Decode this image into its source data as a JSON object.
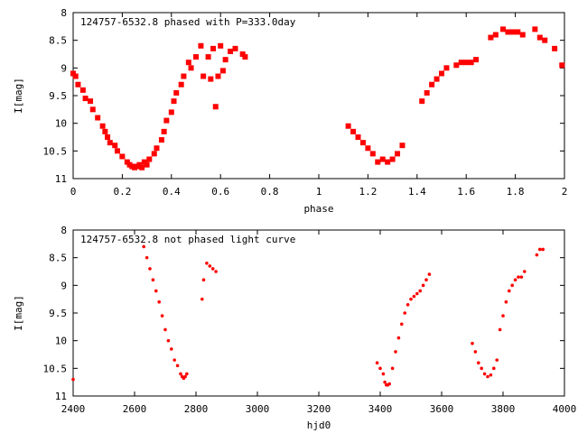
{
  "chart_data": [
    {
      "type": "scatter",
      "title": "124757-6532.8 phased with P=333.0day",
      "xlabel": "phase",
      "ylabel": "I[mag]",
      "xlim": [
        0,
        2
      ],
      "ylim": [
        11,
        8
      ],
      "y_reversed": true,
      "grid": false,
      "marker": "square",
      "color": "#ff0000",
      "xticks": [
        "0",
        "0.2",
        "0.4",
        "0.6",
        "0.8",
        "1",
        "1.2",
        "1.4",
        "1.6",
        "1.8",
        "2"
      ],
      "yticks": [
        "8",
        "8.5",
        "9",
        "9.5",
        "10",
        "10.5",
        "11"
      ],
      "series": [
        {
          "x": [
            0.0,
            0.01,
            0.02,
            0.04,
            0.05,
            0.07,
            0.08,
            0.1,
            0.12,
            0.13,
            0.14,
            0.15,
            0.17,
            0.18,
            0.2,
            0.22,
            0.23,
            0.24,
            0.25,
            0.26,
            0.27,
            0.28,
            0.29,
            0.3,
            0.31,
            0.33,
            0.34,
            0.36,
            0.37,
            0.38,
            0.4,
            0.41,
            0.42,
            0.44,
            0.45,
            0.47,
            0.48,
            0.5,
            0.52,
            0.53,
            0.55,
            0.56,
            0.57,
            0.58,
            0.59,
            0.6,
            0.61,
            0.62,
            0.64,
            0.66,
            0.69,
            0.7,
            1.12,
            1.14,
            1.16,
            1.18,
            1.2,
            1.22,
            1.24,
            1.26,
            1.28,
            1.3,
            1.32,
            1.34,
            1.42,
            1.44,
            1.46,
            1.48,
            1.5,
            1.52,
            1.56,
            1.58,
            1.6,
            1.62,
            1.64,
            1.7,
            1.72,
            1.75,
            1.77,
            1.79,
            1.81,
            1.83,
            1.88,
            1.9,
            1.92,
            1.96,
            1.99
          ],
          "y": [
            9.1,
            9.15,
            9.3,
            9.4,
            9.55,
            9.6,
            9.75,
            9.9,
            10.05,
            10.15,
            10.25,
            10.35,
            10.4,
            10.5,
            10.6,
            10.7,
            10.75,
            10.78,
            10.8,
            10.78,
            10.75,
            10.8,
            10.7,
            10.75,
            10.65,
            10.55,
            10.45,
            10.3,
            10.15,
            9.95,
            9.8,
            9.6,
            9.45,
            9.3,
            9.15,
            8.9,
            9.0,
            8.8,
            8.6,
            9.15,
            8.8,
            9.2,
            8.65,
            9.7,
            9.15,
            8.6,
            9.05,
            8.85,
            8.7,
            8.65,
            8.75,
            8.8,
            10.05,
            10.15,
            10.25,
            10.35,
            10.45,
            10.55,
            10.7,
            10.65,
            10.7,
            10.65,
            10.55,
            10.4,
            9.6,
            9.45,
            9.3,
            9.2,
            9.1,
            9.0,
            8.95,
            8.9,
            8.9,
            8.9,
            8.85,
            8.45,
            8.4,
            8.3,
            8.35,
            8.35,
            8.35,
            8.4,
            8.3,
            8.45,
            8.5,
            8.65,
            8.95
          ]
        }
      ]
    },
    {
      "type": "scatter",
      "title": "124757-6532.8 not phased light curve",
      "xlabel": "hjd0",
      "ylabel": "I[mag]",
      "xlim": [
        2400,
        4000
      ],
      "ylim": [
        11,
        8
      ],
      "y_reversed": true,
      "grid": false,
      "marker": "dot",
      "color": "#ff0000",
      "xticks": [
        "2400",
        "2600",
        "2800",
        "3000",
        "3200",
        "3400",
        "3600",
        "3800",
        "4000"
      ],
      "yticks": [
        "8",
        "8.5",
        "9",
        "9.5",
        "10",
        "10.5",
        "11"
      ],
      "series": [
        {
          "x": [
            2400,
            2630,
            2640,
            2650,
            2660,
            2670,
            2680,
            2690,
            2700,
            2710,
            2720,
            2730,
            2740,
            2750,
            2755,
            2760,
            2765,
            2770,
            2820,
            2825,
            2835,
            2845,
            2855,
            2865,
            3390,
            3400,
            3410,
            3415,
            3420,
            3425,
            3430,
            3440,
            3450,
            3460,
            3470,
            3480,
            3490,
            3500,
            3510,
            3520,
            3530,
            3540,
            3550,
            3560,
            3700,
            3710,
            3720,
            3730,
            3740,
            3750,
            3760,
            3770,
            3780,
            3790,
            3800,
            3810,
            3820,
            3830,
            3840,
            3850,
            3860,
            3870,
            3910,
            3920,
            3930
          ],
          "y": [
            10.7,
            8.3,
            8.5,
            8.7,
            8.9,
            9.1,
            9.3,
            9.55,
            9.8,
            10.0,
            10.15,
            10.35,
            10.45,
            10.6,
            10.65,
            10.68,
            10.65,
            10.6,
            9.25,
            8.9,
            8.6,
            8.65,
            8.7,
            8.75,
            10.4,
            10.5,
            10.6,
            10.75,
            10.8,
            10.8,
            10.78,
            10.5,
            10.2,
            9.95,
            9.7,
            9.5,
            9.35,
            9.25,
            9.2,
            9.15,
            9.1,
            9.0,
            8.9,
            8.8,
            10.05,
            10.2,
            10.4,
            10.5,
            10.6,
            10.65,
            10.62,
            10.5,
            10.35,
            9.8,
            9.55,
            9.3,
            9.1,
            9.0,
            8.9,
            8.85,
            8.85,
            8.75,
            8.45,
            8.35,
            8.35
          ]
        }
      ]
    }
  ]
}
